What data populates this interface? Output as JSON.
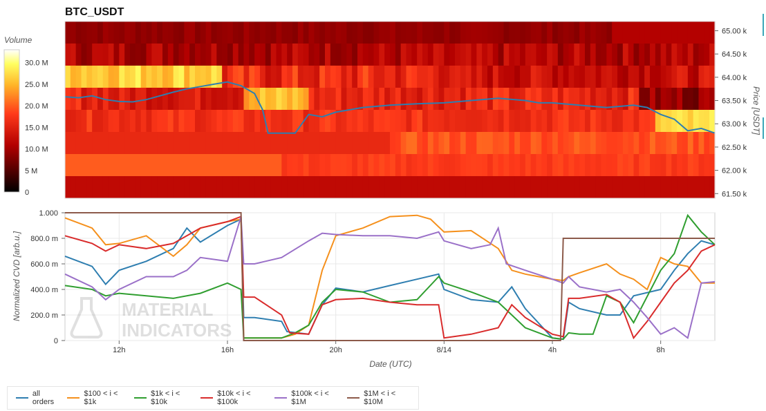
{
  "colors": {
    "all_orders": "#2e7eb0",
    "r100_1k": "#f5901c",
    "r1k_10k": "#2f9e2f",
    "r10k_100k": "#d92b2b",
    "r100k_1m": "#9a70c8",
    "r1m_10m": "#8c5a4a"
  },
  "watermark": {
    "line1": "MATERIAL",
    "line2": "INDICATORS"
  },
  "chart_data": [
    {
      "type": "heatmap",
      "title": "BTC_USDT",
      "ylabel": "Price [USDT]",
      "colorbar_label": "Volume",
      "colorbar_ticks": [
        "0",
        "5 M",
        "10.0 M",
        "15.0 M",
        "20.0 M",
        "25.0 M",
        "30.0 M"
      ],
      "colorbar_range": [
        0,
        33
      ],
      "y_ticks": [
        "61.50 k",
        "62.00 k",
        "62.50 k",
        "63.00 k",
        "63.50 k",
        "64.00 k",
        "64.50 k",
        "65.00 k"
      ],
      "y_range": [
        61400,
        65200
      ],
      "price_levels": [
        61500,
        62000,
        62500,
        63000,
        63500,
        64000,
        64500,
        65000
      ],
      "price_series": [
        [
          0,
          63580
        ],
        [
          0.5,
          63560
        ],
        [
          1,
          63600
        ],
        [
          1.5,
          63520
        ],
        [
          2,
          63480
        ],
        [
          2.5,
          63470
        ],
        [
          3,
          63520
        ],
        [
          3.5,
          63600
        ],
        [
          4,
          63680
        ],
        [
          4.5,
          63750
        ],
        [
          5,
          63800
        ],
        [
          5.5,
          63850
        ],
        [
          6,
          63900
        ],
        [
          6.5,
          63820
        ],
        [
          7,
          63650
        ],
        [
          7.3,
          63300
        ],
        [
          7.5,
          62800
        ],
        [
          8,
          62800
        ],
        [
          8.5,
          62800
        ],
        [
          9,
          63200
        ],
        [
          9.5,
          63150
        ],
        [
          10,
          63250
        ],
        [
          10.5,
          63300
        ],
        [
          11,
          63350
        ],
        [
          12,
          63400
        ],
        [
          13,
          63430
        ],
        [
          14,
          63450
        ],
        [
          15,
          63500
        ],
        [
          16,
          63550
        ],
        [
          17,
          63500
        ],
        [
          17.5,
          63450
        ],
        [
          18,
          63450
        ],
        [
          19,
          63400
        ],
        [
          20,
          63350
        ],
        [
          21,
          63400
        ],
        [
          21.5,
          63350
        ],
        [
          22,
          63200
        ],
        [
          22.5,
          63100
        ],
        [
          23,
          62850
        ],
        [
          23.5,
          62900
        ],
        [
          24,
          62800
        ]
      ]
    },
    {
      "type": "line",
      "xlabel": "Date (UTC)",
      "ylabel": "Normalized CVD [arb.u.]",
      "x_ticks": [
        "12h",
        "16h",
        "20h",
        "8/14",
        "4h",
        "8h"
      ],
      "x_tick_hours": [
        2,
        6,
        10,
        14,
        18,
        22
      ],
      "x_range": [
        0,
        24
      ],
      "y_ticks": [
        "0",
        "200.0 m",
        "400.0 m",
        "600.0 m",
        "800.0 m",
        "1.000"
      ],
      "ylim": [
        0,
        1
      ],
      "series": [
        {
          "name": "all orders",
          "key": "all_orders",
          "points": [
            [
              0,
              0.66
            ],
            [
              1,
              0.58
            ],
            [
              1.5,
              0.44
            ],
            [
              2,
              0.55
            ],
            [
              3,
              0.62
            ],
            [
              4,
              0.72
            ],
            [
              4.5,
              0.88
            ],
            [
              5,
              0.77
            ],
            [
              6,
              0.9
            ],
            [
              6.5,
              0.95
            ],
            [
              6.6,
              0.18
            ],
            [
              7,
              0.18
            ],
            [
              8,
              0.15
            ],
            [
              8.2,
              0.07
            ],
            [
              9,
              0.05
            ],
            [
              9.5,
              0.28
            ],
            [
              10,
              0.41
            ],
            [
              11,
              0.38
            ],
            [
              12,
              0.43
            ],
            [
              13,
              0.48
            ],
            [
              13.8,
              0.52
            ],
            [
              14,
              0.4
            ],
            [
              15,
              0.32
            ],
            [
              16,
              0.3
            ],
            [
              16.5,
              0.42
            ],
            [
              17,
              0.25
            ],
            [
              18,
              0.02
            ],
            [
              18.4,
              0.01
            ],
            [
              18.6,
              0.3
            ],
            [
              19,
              0.25
            ],
            [
              20,
              0.2
            ],
            [
              20.5,
              0.2
            ],
            [
              21,
              0.35
            ],
            [
              22,
              0.4
            ],
            [
              22.5,
              0.55
            ],
            [
              23,
              0.68
            ],
            [
              23.5,
              0.78
            ],
            [
              24,
              0.75
            ]
          ]
        },
        {
          "name": "$100 < i < $1k",
          "key": "r100_1k",
          "points": [
            [
              0,
              0.96
            ],
            [
              1,
              0.88
            ],
            [
              1.5,
              0.75
            ],
            [
              2,
              0.76
            ],
            [
              3,
              0.82
            ],
            [
              4,
              0.66
            ],
            [
              4.5,
              0.75
            ],
            [
              5,
              0.88
            ],
            [
              6,
              0.93
            ],
            [
              6.5,
              0.95
            ],
            [
              6.6,
              0.02
            ],
            [
              7,
              0.02
            ],
            [
              8,
              0.02
            ],
            [
              8.5,
              0.05
            ],
            [
              9,
              0.12
            ],
            [
              9.5,
              0.55
            ],
            [
              10,
              0.82
            ],
            [
              11,
              0.88
            ],
            [
              12,
              0.97
            ],
            [
              13,
              0.98
            ],
            [
              13.5,
              0.95
            ],
            [
              14,
              0.85
            ],
            [
              15,
              0.86
            ],
            [
              16,
              0.72
            ],
            [
              16.5,
              0.55
            ],
            [
              17,
              0.52
            ],
            [
              18,
              0.48
            ],
            [
              18.4,
              0.47
            ],
            [
              18.6,
              0.5
            ],
            [
              19,
              0.53
            ],
            [
              20,
              0.6
            ],
            [
              20.5,
              0.52
            ],
            [
              21,
              0.48
            ],
            [
              21.5,
              0.4
            ],
            [
              22,
              0.65
            ],
            [
              22.5,
              0.6
            ],
            [
              23,
              0.58
            ],
            [
              23.5,
              0.45
            ],
            [
              24,
              0.45
            ]
          ]
        },
        {
          "name": "$1k < i < $10k",
          "key": "r1k_10k",
          "points": [
            [
              0,
              0.43
            ],
            [
              1,
              0.4
            ],
            [
              1.5,
              0.35
            ],
            [
              2,
              0.37
            ],
            [
              3,
              0.35
            ],
            [
              4,
              0.33
            ],
            [
              5,
              0.37
            ],
            [
              6,
              0.45
            ],
            [
              6.5,
              0.4
            ],
            [
              6.6,
              0.02
            ],
            [
              7,
              0.02
            ],
            [
              8,
              0.02
            ],
            [
              8.5,
              0.06
            ],
            [
              9,
              0.12
            ],
            [
              9.5,
              0.3
            ],
            [
              10,
              0.4
            ],
            [
              11,
              0.38
            ],
            [
              12,
              0.3
            ],
            [
              13,
              0.32
            ],
            [
              13.8,
              0.5
            ],
            [
              14,
              0.45
            ],
            [
              15,
              0.38
            ],
            [
              16,
              0.3
            ],
            [
              16.5,
              0.2
            ],
            [
              17,
              0.1
            ],
            [
              18,
              0.02
            ],
            [
              18.4,
              0.01
            ],
            [
              18.6,
              0.06
            ],
            [
              19,
              0.05
            ],
            [
              19.5,
              0.05
            ],
            [
              20,
              0.35
            ],
            [
              20.5,
              0.3
            ],
            [
              21,
              0.14
            ],
            [
              22,
              0.55
            ],
            [
              22.5,
              0.68
            ],
            [
              23,
              0.98
            ],
            [
              23.5,
              0.85
            ],
            [
              24,
              0.75
            ]
          ]
        },
        {
          "name": "$10k < i < $100k",
          "key": "r10k_100k",
          "points": [
            [
              0,
              0.82
            ],
            [
              1,
              0.76
            ],
            [
              1.5,
              0.7
            ],
            [
              2,
              0.75
            ],
            [
              3,
              0.72
            ],
            [
              4,
              0.76
            ],
            [
              4.5,
              0.82
            ],
            [
              5,
              0.88
            ],
            [
              6,
              0.93
            ],
            [
              6.5,
              0.97
            ],
            [
              6.6,
              0.34
            ],
            [
              7,
              0.34
            ],
            [
              8,
              0.2
            ],
            [
              8.3,
              0.06
            ],
            [
              9,
              0.05
            ],
            [
              9.5,
              0.28
            ],
            [
              10,
              0.32
            ],
            [
              11,
              0.33
            ],
            [
              12,
              0.3
            ],
            [
              13,
              0.28
            ],
            [
              13.8,
              0.28
            ],
            [
              14,
              0.02
            ],
            [
              15,
              0.05
            ],
            [
              16,
              0.1
            ],
            [
              16.5,
              0.28
            ],
            [
              17,
              0.18
            ],
            [
              18,
              0.05
            ],
            [
              18.4,
              0.03
            ],
            [
              18.6,
              0.33
            ],
            [
              19,
              0.33
            ],
            [
              20,
              0.36
            ],
            [
              20.5,
              0.3
            ],
            [
              21,
              0.02
            ],
            [
              21.5,
              0.15
            ],
            [
              22,
              0.3
            ],
            [
              22.5,
              0.45
            ],
            [
              23,
              0.55
            ],
            [
              23.5,
              0.7
            ],
            [
              24,
              0.75
            ]
          ]
        },
        {
          "name": "$100k < i < $1M",
          "key": "r100k_1m",
          "points": [
            [
              0,
              0.52
            ],
            [
              1,
              0.42
            ],
            [
              1.5,
              0.32
            ],
            [
              2,
              0.4
            ],
            [
              3,
              0.5
            ],
            [
              4,
              0.5
            ],
            [
              4.5,
              0.55
            ],
            [
              5,
              0.65
            ],
            [
              6,
              0.62
            ],
            [
              6.5,
              0.97
            ],
            [
              6.6,
              0.6
            ],
            [
              7,
              0.6
            ],
            [
              8,
              0.65
            ],
            [
              9,
              0.78
            ],
            [
              9.5,
              0.84
            ],
            [
              10,
              0.83
            ],
            [
              11,
              0.82
            ],
            [
              12,
              0.82
            ],
            [
              13,
              0.8
            ],
            [
              13.8,
              0.85
            ],
            [
              14,
              0.78
            ],
            [
              15,
              0.72
            ],
            [
              15.7,
              0.75
            ],
            [
              16,
              0.88
            ],
            [
              16.3,
              0.6
            ],
            [
              17,
              0.55
            ],
            [
              18,
              0.48
            ],
            [
              18.4,
              0.45
            ],
            [
              18.6,
              0.5
            ],
            [
              19,
              0.42
            ],
            [
              20,
              0.38
            ],
            [
              20.5,
              0.4
            ],
            [
              21,
              0.3
            ],
            [
              21.5,
              0.18
            ],
            [
              22,
              0.05
            ],
            [
              22.5,
              0.1
            ],
            [
              23,
              0.02
            ],
            [
              23.5,
              0.45
            ],
            [
              24,
              0.46
            ]
          ]
        },
        {
          "name": "$1M < i < $10M",
          "key": "r1m_10m",
          "points": [
            [
              0,
              1
            ],
            [
              6.5,
              1
            ],
            [
              6.6,
              0
            ],
            [
              18.3,
              0
            ],
            [
              18.4,
              0.8
            ],
            [
              24,
              0.8
            ]
          ]
        }
      ]
    }
  ]
}
